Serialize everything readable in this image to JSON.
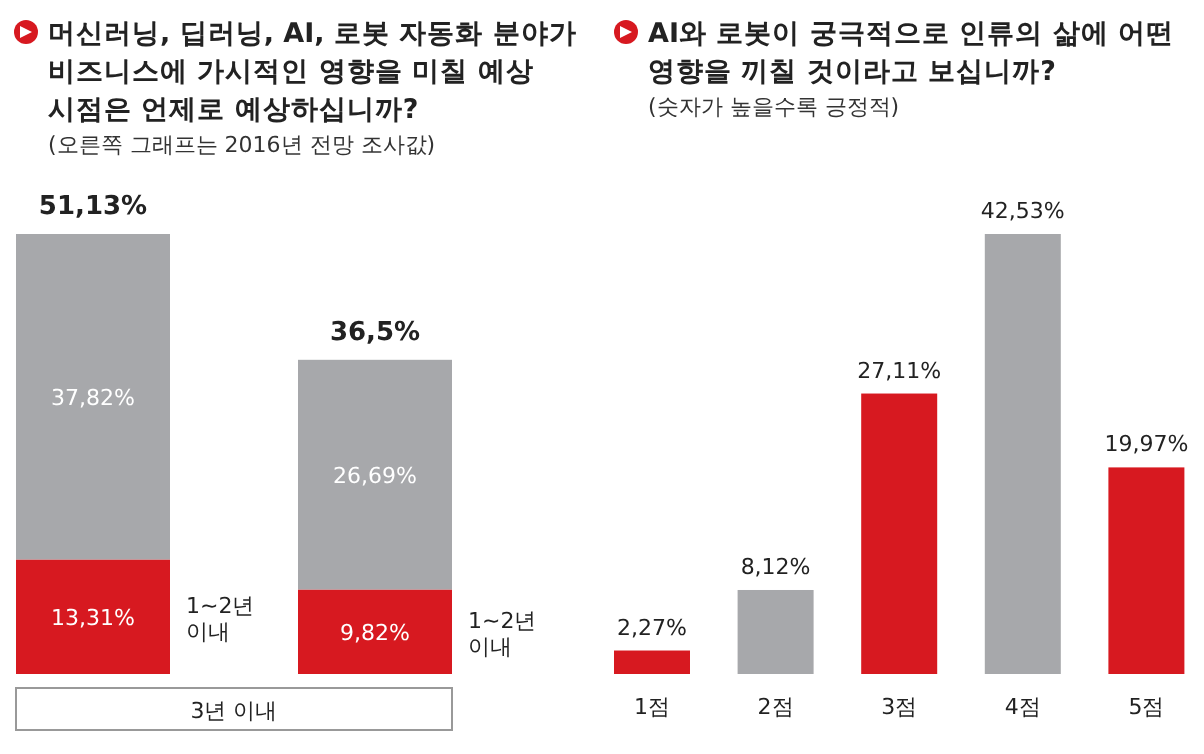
{
  "chart_data": [
    {
      "type": "bar",
      "stacked": true,
      "title": "머신러닝, 딥러닝, AI, 로봇 자동화 분야가 비즈니스에 가시적인 영향을 미칠 예상 시점은 언제로 예상하십니까?",
      "subtitle": "(오른쪽 그래프는 2016년 전망 조사값)",
      "categories": [
        null,
        null
      ],
      "series": [
        {
          "name": "1~2년 이내",
          "color": "#d71920",
          "values": [
            13.31,
            9.82
          ],
          "value_labels": [
            "13,31%",
            "9,82%"
          ]
        },
        {
          "color": "#a7a8ab",
          "values": [
            37.82,
            26.69
          ],
          "value_labels": [
            "37,82%",
            "26,69%"
          ]
        }
      ],
      "totals": [
        "51,13%",
        "36,5%"
      ],
      "annotations": [
        "3년 이내"
      ]
    },
    {
      "type": "bar",
      "title": "AI와 로봇이 궁극적으로 인류의 삶에 어떤 영향을 끼칠 것이라고 보십니까?",
      "subtitle": "(숫자가 높을수록 긍정적)",
      "categories": [
        "1점",
        "2점",
        "3점",
        "4점",
        "5점"
      ],
      "values": [
        2.27,
        8.12,
        27.11,
        42.53,
        19.97
      ],
      "colors": [
        "#d71920",
        "#a7a8ab",
        "#d71920",
        "#a7a8ab",
        "#d71920"
      ],
      "value_labels": [
        "2,27%",
        "8,12%",
        "27,11%",
        "42,53%",
        "19,97%"
      ]
    }
  ]
}
